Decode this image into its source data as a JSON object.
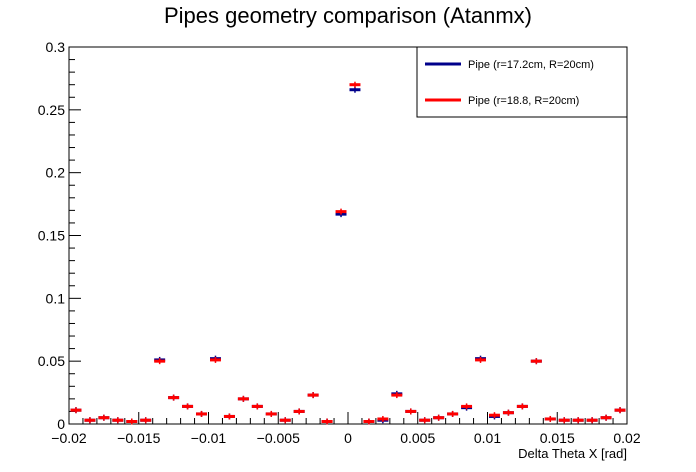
{
  "chart_data": {
    "type": "scatter",
    "title": "Pipes geometry comparison (Atanmx)",
    "xlabel": "Delta Theta X [rad]",
    "ylabel": "",
    "xlim": [
      -0.02,
      0.02
    ],
    "ylim": [
      0,
      0.3
    ],
    "x_ticks": [
      -0.02,
      -0.015,
      -0.01,
      -0.005,
      0,
      0.005,
      0.01,
      0.015,
      0.02
    ],
    "x_tick_labels": [
      "−0.02",
      "−0.015",
      "−0.01",
      "−0.005",
      "0",
      "0.005",
      "0.01",
      "0.015",
      "0.02"
    ],
    "y_ticks": [
      0,
      0.05,
      0.1,
      0.15,
      0.2,
      0.25,
      0.3
    ],
    "y_tick_labels": [
      "0",
      "0.05",
      "0.1",
      "0.15",
      "0.2",
      "0.25",
      "0.3"
    ],
    "legend_position": "top-right",
    "bin_width": 0.001,
    "x": [
      -0.0195,
      -0.0185,
      -0.0175,
      -0.0165,
      -0.0155,
      -0.0145,
      -0.0135,
      -0.0125,
      -0.0115,
      -0.0105,
      -0.0095,
      -0.0085,
      -0.0075,
      -0.0065,
      -0.0055,
      -0.0045,
      -0.0035,
      -0.0025,
      -0.0015,
      -0.0005,
      0.0005,
      0.0015,
      0.0025,
      0.0035,
      0.0045,
      0.0055,
      0.0065,
      0.0075,
      0.0085,
      0.0095,
      0.0105,
      0.0115,
      0.0125,
      0.0135,
      0.0145,
      0.0155,
      0.0165,
      0.0175,
      0.0185,
      0.0195
    ],
    "series": [
      {
        "name": "Pipe (r=17.2cm, R=20cm)",
        "color": "#00008b",
        "values": [
          0.011,
          0.003,
          0.005,
          0.003,
          0.002,
          0.003,
          0.051,
          0.021,
          0.014,
          0.008,
          0.052,
          0.006,
          0.02,
          0.014,
          0.008,
          0.003,
          0.01,
          0.023,
          0.002,
          0.167,
          0.266,
          0.002,
          0.003,
          0.024,
          0.01,
          0.003,
          0.005,
          0.008,
          0.013,
          0.052,
          0.006,
          0.009,
          0.014,
          0.05,
          0.004,
          0.003,
          0.003,
          0.003,
          0.005,
          0.011
        ]
      },
      {
        "name": "Pipe (r=18.8, R=20cm)",
        "color": "#ff0000",
        "values": [
          0.011,
          0.003,
          0.005,
          0.003,
          0.002,
          0.003,
          0.05,
          0.021,
          0.014,
          0.008,
          0.051,
          0.006,
          0.02,
          0.014,
          0.008,
          0.003,
          0.01,
          0.023,
          0.002,
          0.169,
          0.27,
          0.002,
          0.004,
          0.023,
          0.01,
          0.003,
          0.005,
          0.008,
          0.014,
          0.051,
          0.007,
          0.009,
          0.014,
          0.05,
          0.004,
          0.003,
          0.003,
          0.003,
          0.005,
          0.011
        ]
      }
    ]
  }
}
